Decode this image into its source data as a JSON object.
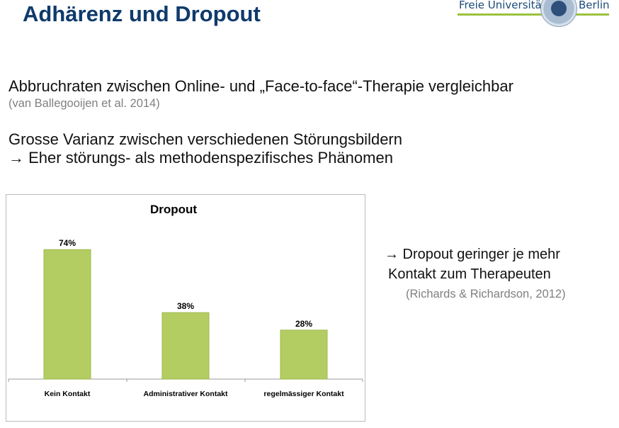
{
  "slide": {
    "title": "Adhärenz und Dropout",
    "logo": {
      "left": "Freie Universität",
      "right": "Berlin"
    },
    "line1": "Abbruchraten zwischen Online- und „Face-to-face“-Therapie vergleichbar",
    "cite1": "(van Ballegooijen et al. 2014)",
    "line2": "Grosse Varianz zwischen verschiedenen Störungsbildern",
    "line3": "→ Eher störungs- als methodenspezifisches Phänomen",
    "side1": "→ Dropout geringer je mehr",
    "side2": "Kontakt zum Therapeuten",
    "cite2": "(Richards & Richardson, 2012)"
  },
  "colors": {
    "title": "#0f3a6b",
    "bar": "#b3cd62",
    "accent_line": "#9bc13c"
  },
  "chart_data": {
    "type": "bar",
    "title": "Dropout",
    "categories": [
      "Kein Kontakt",
      "Administrativer Kontakt",
      "regelmässiger Kontakt"
    ],
    "values": [
      74,
      38,
      28
    ],
    "data_labels": [
      "74%",
      "38%",
      "28%"
    ],
    "grid": false
  }
}
